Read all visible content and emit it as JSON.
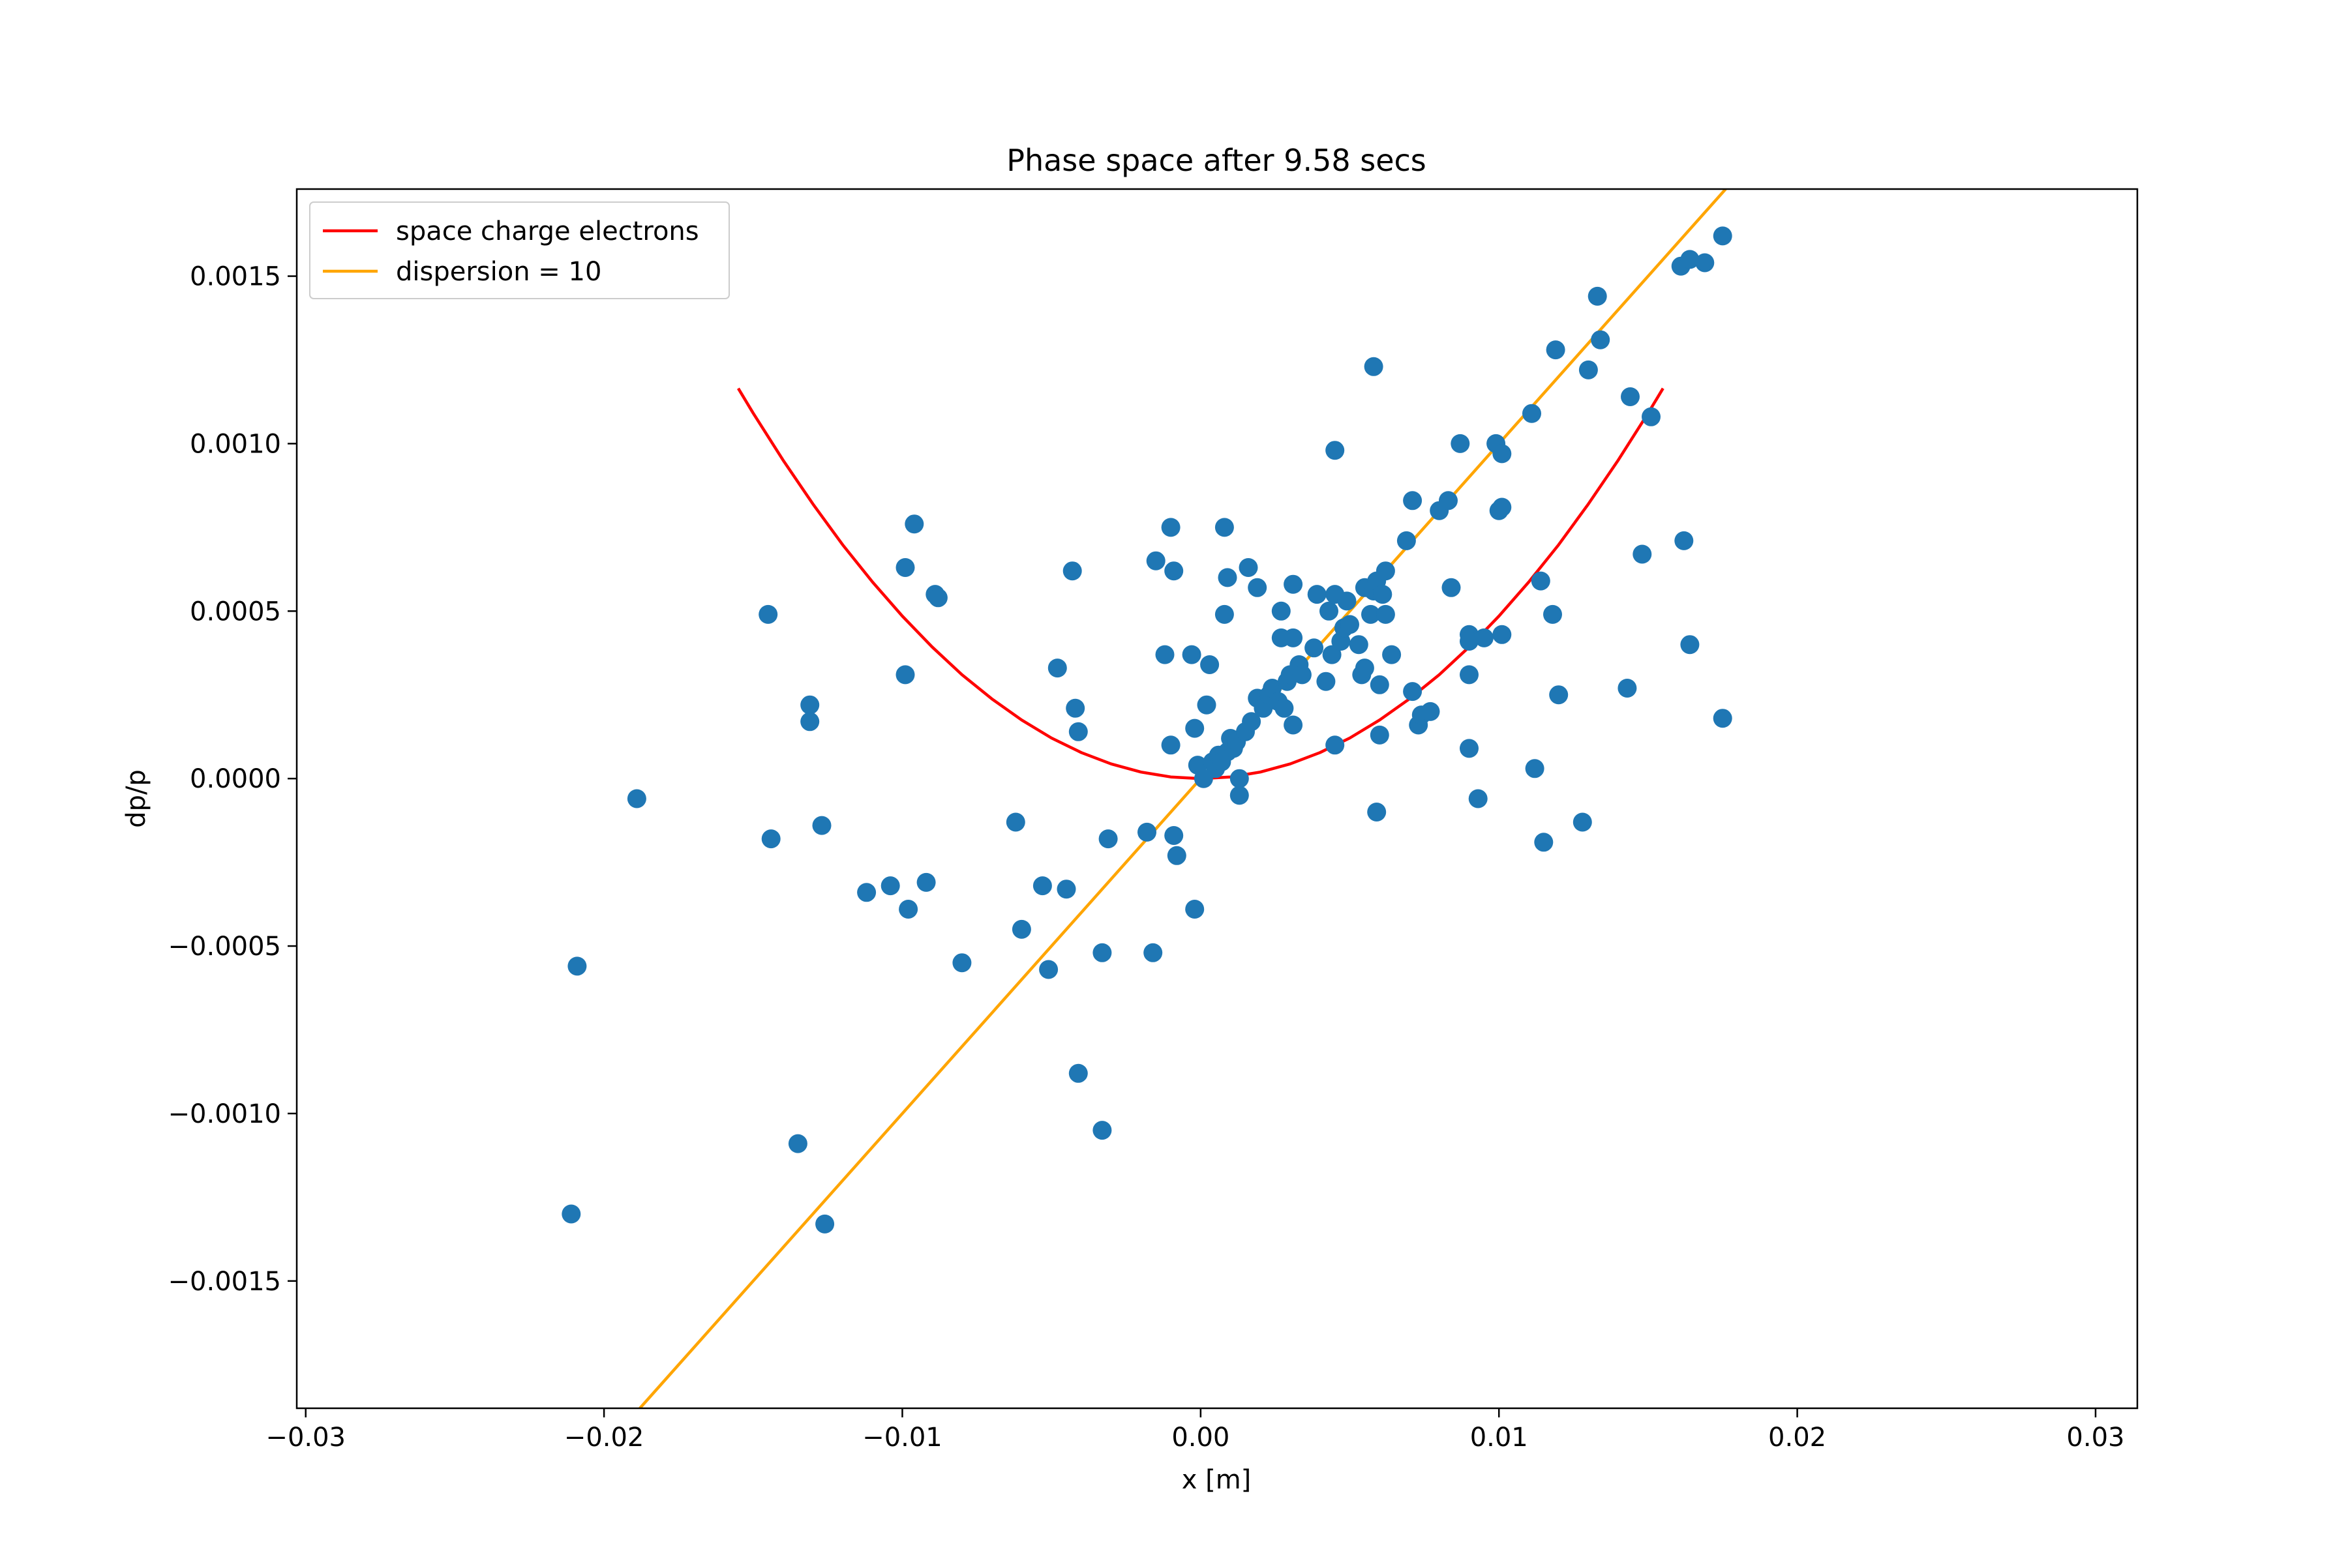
{
  "chart_data": {
    "type": "scatter",
    "title": "Phase space after 9.58 secs",
    "xlabel": "x [m]",
    "ylabel": "dp/p",
    "xlim": [
      -0.0303,
      0.0314
    ],
    "ylim": [
      -0.00188,
      0.00176
    ],
    "grid": false,
    "legend_position": "top-left",
    "x_ticks": [
      {
        "value": -0.03,
        "label": "−0.03"
      },
      {
        "value": -0.02,
        "label": "−0.02"
      },
      {
        "value": -0.01,
        "label": "−0.01"
      },
      {
        "value": 0.0,
        "label": "0.00"
      },
      {
        "value": 0.01,
        "label": "0.01"
      },
      {
        "value": 0.02,
        "label": "0.02"
      },
      {
        "value": 0.03,
        "label": "0.03"
      }
    ],
    "y_ticks": [
      {
        "value": -0.0015,
        "label": "−0.0015"
      },
      {
        "value": -0.001,
        "label": "−0.0010"
      },
      {
        "value": -0.0005,
        "label": "−0.0005"
      },
      {
        "value": 0.0,
        "label": "0.0000"
      },
      {
        "value": 0.0005,
        "label": "0.0005"
      },
      {
        "value": 0.001,
        "label": "0.0010"
      },
      {
        "value": 0.0015,
        "label": "0.0015"
      }
    ],
    "series": [
      {
        "name": "space charge electrons",
        "kind": "line",
        "color": "#ff0000",
        "formula": "dp/p = 4.85 * x^2",
        "x": [
          -0.0155,
          -0.015,
          -0.014,
          -0.013,
          -0.012,
          -0.011,
          -0.01,
          -0.009,
          -0.008,
          -0.007,
          -0.006,
          -0.005,
          -0.004,
          -0.003,
          -0.002,
          -0.001,
          0.0,
          0.001,
          0.002,
          0.003,
          0.004,
          0.005,
          0.006,
          0.007,
          0.008,
          0.009,
          0.01,
          0.011,
          0.012,
          0.013,
          0.014,
          0.015,
          0.0155
        ],
        "y": [
          0.001165,
          0.001091,
          0.000951,
          0.00082,
          0.000698,
          0.000587,
          0.000485,
          0.000393,
          0.00031,
          0.000238,
          0.000175,
          0.000121,
          7.76e-05,
          4.37e-05,
          1.94e-05,
          4.85e-06,
          0.0,
          4.85e-06,
          1.94e-05,
          4.37e-05,
          7.76e-05,
          0.000121,
          0.000175,
          0.000238,
          0.00031,
          0.000393,
          0.000485,
          0.000587,
          0.000698,
          0.00082,
          0.000951,
          0.001091,
          0.001165
        ]
      },
      {
        "name": "dispersion = 10",
        "kind": "line",
        "color": "#ffa500",
        "formula": "dp/p = x / 10",
        "x": [
          -0.0188,
          0.0176
        ],
        "y": [
          -0.00188,
          0.00176
        ]
      },
      {
        "kind": "scatter",
        "color": "#1f77b4",
        "points": [
          [
            -0.0211,
            -0.0013
          ],
          [
            -0.0209,
            -0.00056
          ],
          [
            -0.0189,
            -6e-05
          ],
          [
            -0.0145,
            0.00049
          ],
          [
            -0.0144,
            -0.00018
          ],
          [
            -0.0135,
            -0.00109
          ],
          [
            -0.0131,
            0.00022
          ],
          [
            -0.0131,
            0.00017
          ],
          [
            -0.0127,
            -0.00014
          ],
          [
            -0.0126,
            -0.00133
          ],
          [
            -0.0112,
            -0.00034
          ],
          [
            -0.0104,
            -0.00032
          ],
          [
            -0.0099,
            0.00063
          ],
          [
            -0.0099,
            0.00031
          ],
          [
            -0.0098,
            -0.00039
          ],
          [
            -0.0096,
            0.00076
          ],
          [
            -0.0092,
            -0.00031
          ],
          [
            -0.0089,
            0.00055
          ],
          [
            -0.0088,
            0.00054
          ],
          [
            -0.008,
            -0.00055
          ],
          [
            -0.0062,
            -0.00013
          ],
          [
            -0.006,
            -0.00045
          ],
          [
            -0.0053,
            -0.00032
          ],
          [
            -0.0051,
            -0.00057
          ],
          [
            -0.0048,
            0.00033
          ],
          [
            -0.0045,
            -0.00033
          ],
          [
            -0.0043,
            0.00062
          ],
          [
            -0.0042,
            0.00021
          ],
          [
            -0.0041,
            0.00014
          ],
          [
            -0.0041,
            -0.00088
          ],
          [
            -0.0033,
            -0.00052
          ],
          [
            -0.0033,
            -0.00105
          ],
          [
            -0.0031,
            -0.00018
          ],
          [
            -0.0018,
            -0.00016
          ],
          [
            -0.0016,
            -0.00052
          ],
          [
            -0.0015,
            0.00065
          ],
          [
            -0.0012,
            0.00037
          ],
          [
            -0.001,
            0.00075
          ],
          [
            -0.001,
            0.0001
          ],
          [
            -0.0009,
            0.00062
          ],
          [
            -0.0009,
            -0.00017
          ],
          [
            -0.0008,
            -0.00023
          ],
          [
            -0.0003,
            0.00037
          ],
          [
            -0.0002,
            0.00015
          ],
          [
            -0.0002,
            -0.00039
          ],
          [
            -0.0001,
            4e-05
          ],
          [
            0.0001,
            0.0
          ],
          [
            0.0002,
            0.00022
          ],
          [
            0.0003,
            0.00034
          ],
          [
            0.0004,
            5e-05
          ],
          [
            0.0005,
            3e-05
          ],
          [
            0.0006,
            7e-05
          ],
          [
            0.0007,
            5e-05
          ],
          [
            0.0008,
            0.00049
          ],
          [
            0.0008,
            0.00075
          ],
          [
            0.0009,
            0.0006
          ],
          [
            0.0009,
            8e-05
          ],
          [
            0.001,
            0.00012
          ],
          [
            0.0011,
            9e-05
          ],
          [
            0.0012,
            0.00011
          ],
          [
            0.0013,
            0.0
          ],
          [
            0.0013,
            -5e-05
          ],
          [
            0.0015,
            0.00014
          ],
          [
            0.0016,
            0.00063
          ],
          [
            0.0017,
            0.00017
          ],
          [
            0.0019,
            0.00057
          ],
          [
            0.0019,
            0.00024
          ],
          [
            0.0021,
            0.00021
          ],
          [
            0.0023,
            0.00025
          ],
          [
            0.0024,
            0.00027
          ],
          [
            0.0026,
            0.00023
          ],
          [
            0.0027,
            0.00042
          ],
          [
            0.0027,
            0.0005
          ],
          [
            0.0028,
            0.00021
          ],
          [
            0.0029,
            0.00029
          ],
          [
            0.003,
            0.00031
          ],
          [
            0.0031,
            0.00042
          ],
          [
            0.0031,
            0.00058
          ],
          [
            0.0031,
            0.00016
          ],
          [
            0.0033,
            0.00034
          ],
          [
            0.0034,
            0.00031
          ],
          [
            0.0038,
            0.00039
          ],
          [
            0.0039,
            0.00055
          ],
          [
            0.0042,
            0.00029
          ],
          [
            0.0043,
            0.0005
          ],
          [
            0.0044,
            0.00037
          ],
          [
            0.0045,
            0.00055
          ],
          [
            0.0045,
            0.00098
          ],
          [
            0.0045,
            0.0001
          ],
          [
            0.0047,
            0.00041
          ],
          [
            0.0048,
            0.00045
          ],
          [
            0.0049,
            0.00053
          ],
          [
            0.005,
            0.00046
          ],
          [
            0.0053,
            0.0004
          ],
          [
            0.0054,
            0.00031
          ],
          [
            0.0055,
            0.00057
          ],
          [
            0.0055,
            0.00033
          ],
          [
            0.0057,
            0.00049
          ],
          [
            0.0058,
            0.00056
          ],
          [
            0.0058,
            0.00123
          ],
          [
            0.0059,
            0.00059
          ],
          [
            0.0059,
            -0.0001
          ],
          [
            0.006,
            0.00028
          ],
          [
            0.006,
            0.00013
          ],
          [
            0.0061,
            0.00055
          ],
          [
            0.0062,
            0.00062
          ],
          [
            0.0062,
            0.00049
          ],
          [
            0.0064,
            0.00037
          ],
          [
            0.0069,
            0.00071
          ],
          [
            0.0071,
            0.00083
          ],
          [
            0.0071,
            0.00026
          ],
          [
            0.0073,
            0.00016
          ],
          [
            0.0074,
            0.00019
          ],
          [
            0.0077,
            0.0002
          ],
          [
            0.008,
            0.0008
          ],
          [
            0.0083,
            0.00083
          ],
          [
            0.0084,
            0.00057
          ],
          [
            0.0087,
            0.001
          ],
          [
            0.009,
            0.00043
          ],
          [
            0.009,
            0.00041
          ],
          [
            0.009,
            0.00031
          ],
          [
            0.009,
            9e-05
          ],
          [
            0.0093,
            -6e-05
          ],
          [
            0.0095,
            0.00042
          ],
          [
            0.0099,
            0.001
          ],
          [
            0.01,
            0.0008
          ],
          [
            0.0101,
            0.00043
          ],
          [
            0.0101,
            0.00097
          ],
          [
            0.0101,
            0.00081
          ],
          [
            0.0111,
            0.00109
          ],
          [
            0.0112,
            3e-05
          ],
          [
            0.0114,
            0.00059
          ],
          [
            0.0115,
            -0.00019
          ],
          [
            0.0118,
            0.00049
          ],
          [
            0.0119,
            0.00128
          ],
          [
            0.012,
            0.00025
          ],
          [
            0.0128,
            -0.00013
          ],
          [
            0.013,
            0.00122
          ],
          [
            0.0133,
            0.00144
          ],
          [
            0.0134,
            0.00131
          ],
          [
            0.0143,
            0.00027
          ],
          [
            0.0144,
            0.00114
          ],
          [
            0.0148,
            0.00067
          ],
          [
            0.0151,
            0.00108
          ],
          [
            0.0161,
            0.00153
          ],
          [
            0.0162,
            0.00071
          ],
          [
            0.0164,
            0.00155
          ],
          [
            0.0164,
            0.0004
          ],
          [
            0.0169,
            0.00154
          ],
          [
            0.0175,
            0.00162
          ],
          [
            0.0175,
            0.00018
          ]
        ]
      }
    ]
  }
}
